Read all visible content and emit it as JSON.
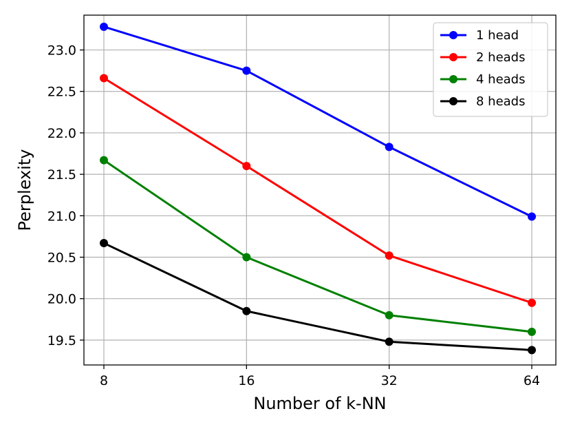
{
  "chart_data": {
    "type": "line",
    "title": "",
    "xlabel": "Number of k-NN",
    "ylabel": "Perplexity",
    "x": [
      8,
      16,
      32,
      64
    ],
    "x_tick_labels": [
      "8",
      "16",
      "32",
      "64"
    ],
    "x_scale": "log2",
    "ylim": [
      19.2,
      23.42
    ],
    "y_ticks": [
      19.5,
      20.0,
      20.5,
      21.0,
      21.5,
      22.0,
      22.5,
      23.0
    ],
    "y_tick_labels": [
      "19.5",
      "20.0",
      "20.5",
      "21.0",
      "21.5",
      "22.0",
      "22.5",
      "23.0"
    ],
    "grid": true,
    "legend_position": "top-right",
    "series": [
      {
        "name": "1 head",
        "color": "#0000ff",
        "values": [
          23.28,
          22.75,
          21.83,
          20.99
        ]
      },
      {
        "name": "2 heads",
        "color": "#ff0000",
        "values": [
          22.66,
          21.6,
          20.52,
          19.95
        ]
      },
      {
        "name": "4 heads",
        "color": "#008000",
        "values": [
          21.67,
          20.5,
          19.8,
          19.6
        ]
      },
      {
        "name": "8 heads",
        "color": "#000000",
        "values": [
          20.67,
          19.85,
          19.48,
          19.38
        ]
      }
    ]
  }
}
